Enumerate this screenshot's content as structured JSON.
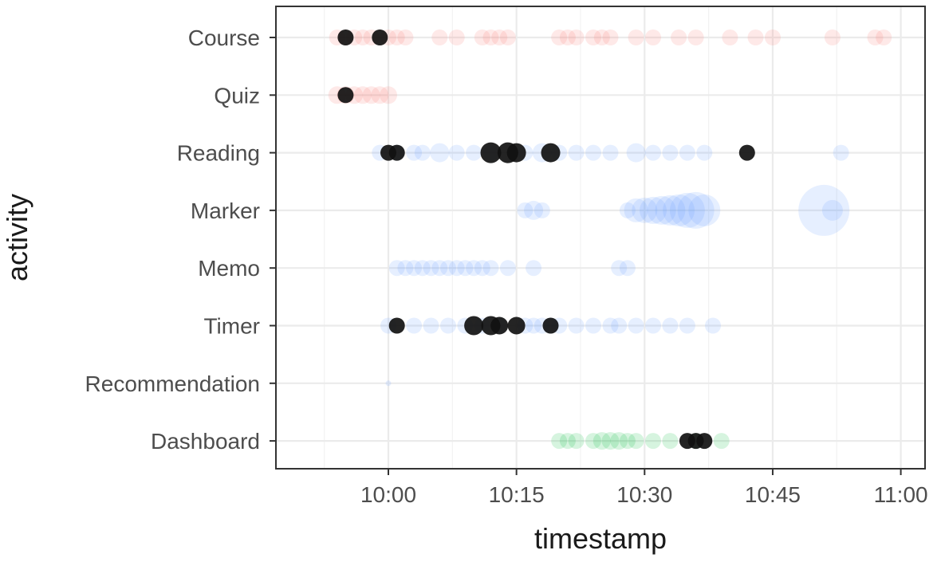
{
  "chart_data": {
    "type": "scatter",
    "title": "",
    "xlabel": "timestamp",
    "ylabel": "activity",
    "x_axis": {
      "type": "time",
      "min": "09:47",
      "max": "11:01",
      "major_ticks": [
        "10:00",
        "10:15",
        "10:30",
        "10:45",
        "11:00"
      ],
      "minor_ticks": [
        "09:52:30",
        "10:07:30",
        "10:22:30",
        "10:37:30",
        "10:52:30"
      ]
    },
    "categories": [
      "Course",
      "Quiz",
      "Reading",
      "Marker",
      "Memo",
      "Timer",
      "Recommendation",
      "Dashboard"
    ],
    "grid": true,
    "legend": "none",
    "colors": {
      "red": "#f8766d",
      "blue": "#619cff",
      "green": "#00ba38",
      "black": "#111111",
      "grid": "#ebebeb",
      "panel_border": "#333333"
    },
    "points": [
      {
        "y": "Course",
        "x": "09:54",
        "c": "red",
        "s": 1
      },
      {
        "y": "Course",
        "x": "09:55",
        "c": "red",
        "s": 1
      },
      {
        "y": "Course",
        "x": "09:56",
        "c": "red",
        "s": 1
      },
      {
        "y": "Course",
        "x": "09:57",
        "c": "red",
        "s": 1
      },
      {
        "y": "Course",
        "x": "09:58",
        "c": "red",
        "s": 1
      },
      {
        "y": "Course",
        "x": "09:59",
        "c": "red",
        "s": 1
      },
      {
        "y": "Course",
        "x": "10:00",
        "c": "red",
        "s": 1
      },
      {
        "y": "Course",
        "x": "10:01",
        "c": "red",
        "s": 1
      },
      {
        "y": "Course",
        "x": "10:02",
        "c": "red",
        "s": 1
      },
      {
        "y": "Course",
        "x": "10:06",
        "c": "red",
        "s": 1
      },
      {
        "y": "Course",
        "x": "10:08",
        "c": "red",
        "s": 1
      },
      {
        "y": "Course",
        "x": "10:11",
        "c": "red",
        "s": 1
      },
      {
        "y": "Course",
        "x": "10:12",
        "c": "red",
        "s": 1
      },
      {
        "y": "Course",
        "x": "10:13",
        "c": "red",
        "s": 1
      },
      {
        "y": "Course",
        "x": "10:14",
        "c": "red",
        "s": 1
      },
      {
        "y": "Course",
        "x": "10:20",
        "c": "red",
        "s": 1
      },
      {
        "y": "Course",
        "x": "10:21",
        "c": "red",
        "s": 1
      },
      {
        "y": "Course",
        "x": "10:22",
        "c": "red",
        "s": 1
      },
      {
        "y": "Course",
        "x": "10:24",
        "c": "red",
        "s": 1
      },
      {
        "y": "Course",
        "x": "10:25",
        "c": "red",
        "s": 1
      },
      {
        "y": "Course",
        "x": "10:26",
        "c": "red",
        "s": 1
      },
      {
        "y": "Course",
        "x": "10:29",
        "c": "red",
        "s": 1
      },
      {
        "y": "Course",
        "x": "10:31",
        "c": "red",
        "s": 1
      },
      {
        "y": "Course",
        "x": "10:34",
        "c": "red",
        "s": 1
      },
      {
        "y": "Course",
        "x": "10:36",
        "c": "red",
        "s": 1
      },
      {
        "y": "Course",
        "x": "10:40",
        "c": "red",
        "s": 1
      },
      {
        "y": "Course",
        "x": "10:43",
        "c": "red",
        "s": 1
      },
      {
        "y": "Course",
        "x": "10:45",
        "c": "red",
        "s": 1
      },
      {
        "y": "Course",
        "x": "10:52",
        "c": "red",
        "s": 1
      },
      {
        "y": "Course",
        "x": "10:57",
        "c": "red",
        "s": 1
      },
      {
        "y": "Course",
        "x": "10:58",
        "c": "red",
        "s": 1
      },
      {
        "y": "Course",
        "x": "09:55",
        "c": "black",
        "s": 1
      },
      {
        "y": "Course",
        "x": "09:59",
        "c": "black",
        "s": 1
      },
      {
        "y": "Quiz",
        "x": "09:54",
        "c": "red",
        "s": 1.1
      },
      {
        "y": "Quiz",
        "x": "09:55",
        "c": "red",
        "s": 1.1
      },
      {
        "y": "Quiz",
        "x": "09:56",
        "c": "red",
        "s": 1.1
      },
      {
        "y": "Quiz",
        "x": "09:57",
        "c": "red",
        "s": 1.1
      },
      {
        "y": "Quiz",
        "x": "09:58",
        "c": "red",
        "s": 1.1
      },
      {
        "y": "Quiz",
        "x": "09:59",
        "c": "red",
        "s": 1.1
      },
      {
        "y": "Quiz",
        "x": "10:00",
        "c": "red",
        "s": 1.1
      },
      {
        "y": "Quiz",
        "x": "09:55",
        "c": "black",
        "s": 1
      },
      {
        "y": "Reading",
        "x": "09:59",
        "c": "blue",
        "s": 1
      },
      {
        "y": "Reading",
        "x": "10:01",
        "c": "blue",
        "s": 1
      },
      {
        "y": "Reading",
        "x": "10:03",
        "c": "blue",
        "s": 1
      },
      {
        "y": "Reading",
        "x": "10:04",
        "c": "blue",
        "s": 1
      },
      {
        "y": "Reading",
        "x": "10:06",
        "c": "blue",
        "s": 1.2
      },
      {
        "y": "Reading",
        "x": "10:08",
        "c": "blue",
        "s": 1
      },
      {
        "y": "Reading",
        "x": "10:10",
        "c": "blue",
        "s": 1
      },
      {
        "y": "Reading",
        "x": "10:12",
        "c": "blue",
        "s": 1
      },
      {
        "y": "Reading",
        "x": "10:16",
        "c": "blue",
        "s": 1
      },
      {
        "y": "Reading",
        "x": "10:18",
        "c": "blue",
        "s": 1.2
      },
      {
        "y": "Reading",
        "x": "10:20",
        "c": "blue",
        "s": 1
      },
      {
        "y": "Reading",
        "x": "10:22",
        "c": "blue",
        "s": 1
      },
      {
        "y": "Reading",
        "x": "10:24",
        "c": "blue",
        "s": 1
      },
      {
        "y": "Reading",
        "x": "10:26",
        "c": "blue",
        "s": 1
      },
      {
        "y": "Reading",
        "x": "10:29",
        "c": "blue",
        "s": 1.2
      },
      {
        "y": "Reading",
        "x": "10:31",
        "c": "blue",
        "s": 1
      },
      {
        "y": "Reading",
        "x": "10:33",
        "c": "blue",
        "s": 1
      },
      {
        "y": "Reading",
        "x": "10:35",
        "c": "blue",
        "s": 1
      },
      {
        "y": "Reading",
        "x": "10:37",
        "c": "blue",
        "s": 1
      },
      {
        "y": "Reading",
        "x": "10:53",
        "c": "blue",
        "s": 1
      },
      {
        "y": "Reading",
        "x": "10:00",
        "c": "black",
        "s": 1
      },
      {
        "y": "Reading",
        "x": "10:01",
        "c": "black",
        "s": 1
      },
      {
        "y": "Reading",
        "x": "10:12",
        "c": "black",
        "s": 1.3
      },
      {
        "y": "Reading",
        "x": "10:14",
        "c": "black",
        "s": 1.3
      },
      {
        "y": "Reading",
        "x": "10:15",
        "c": "black",
        "s": 1.2
      },
      {
        "y": "Reading",
        "x": "10:19",
        "c": "black",
        "s": 1.2
      },
      {
        "y": "Reading",
        "x": "10:42",
        "c": "black",
        "s": 1
      },
      {
        "y": "Marker",
        "x": "10:16",
        "c": "blue",
        "s": 1
      },
      {
        "y": "Marker",
        "x": "10:17",
        "c": "blue",
        "s": 1.2
      },
      {
        "y": "Marker",
        "x": "10:18",
        "c": "blue",
        "s": 1
      },
      {
        "y": "Marker",
        "x": "10:28",
        "c": "blue",
        "s": 1
      },
      {
        "y": "Marker",
        "x": "10:29",
        "c": "blue",
        "s": 1.5
      },
      {
        "y": "Marker",
        "x": "10:30",
        "c": "blue",
        "s": 1.6
      },
      {
        "y": "Marker",
        "x": "10:31",
        "c": "blue",
        "s": 1.7
      },
      {
        "y": "Marker",
        "x": "10:32",
        "c": "blue",
        "s": 1.8
      },
      {
        "y": "Marker",
        "x": "10:33",
        "c": "blue",
        "s": 1.9
      },
      {
        "y": "Marker",
        "x": "10:34",
        "c": "blue",
        "s": 2
      },
      {
        "y": "Marker",
        "x": "10:35",
        "c": "blue",
        "s": 2.2
      },
      {
        "y": "Marker",
        "x": "10:36",
        "c": "blue",
        "s": 2.3
      },
      {
        "y": "Marker",
        "x": "10:37",
        "c": "blue",
        "s": 2
      },
      {
        "y": "Marker",
        "x": "10:51",
        "c": "blue",
        "s": 3.2
      },
      {
        "y": "Marker",
        "x": "10:52",
        "c": "blue",
        "s": 1.3
      },
      {
        "y": "Memo",
        "x": "10:01",
        "c": "blue",
        "s": 1
      },
      {
        "y": "Memo",
        "x": "10:02",
        "c": "blue",
        "s": 1
      },
      {
        "y": "Memo",
        "x": "10:03",
        "c": "blue",
        "s": 1
      },
      {
        "y": "Memo",
        "x": "10:04",
        "c": "blue",
        "s": 1
      },
      {
        "y": "Memo",
        "x": "10:05",
        "c": "blue",
        "s": 1
      },
      {
        "y": "Memo",
        "x": "10:06",
        "c": "blue",
        "s": 1
      },
      {
        "y": "Memo",
        "x": "10:07",
        "c": "blue",
        "s": 1
      },
      {
        "y": "Memo",
        "x": "10:08",
        "c": "blue",
        "s": 1
      },
      {
        "y": "Memo",
        "x": "10:09",
        "c": "blue",
        "s": 1
      },
      {
        "y": "Memo",
        "x": "10:10",
        "c": "blue",
        "s": 1
      },
      {
        "y": "Memo",
        "x": "10:11",
        "c": "blue",
        "s": 1
      },
      {
        "y": "Memo",
        "x": "10:12",
        "c": "blue",
        "s": 1
      },
      {
        "y": "Memo",
        "x": "10:14",
        "c": "blue",
        "s": 1
      },
      {
        "y": "Memo",
        "x": "10:17",
        "c": "blue",
        "s": 1
      },
      {
        "y": "Memo",
        "x": "10:27",
        "c": "blue",
        "s": 1
      },
      {
        "y": "Memo",
        "x": "10:28",
        "c": "blue",
        "s": 1
      },
      {
        "y": "Timer",
        "x": "10:00",
        "c": "blue",
        "s": 1
      },
      {
        "y": "Timer",
        "x": "10:03",
        "c": "blue",
        "s": 1
      },
      {
        "y": "Timer",
        "x": "10:05",
        "c": "blue",
        "s": 1
      },
      {
        "y": "Timer",
        "x": "10:07",
        "c": "blue",
        "s": 1
      },
      {
        "y": "Timer",
        "x": "10:09",
        "c": "blue",
        "s": 1
      },
      {
        "y": "Timer",
        "x": "10:11",
        "c": "blue",
        "s": 1
      },
      {
        "y": "Timer",
        "x": "10:13",
        "c": "blue",
        "s": 1
      },
      {
        "y": "Timer",
        "x": "10:16",
        "c": "blue",
        "s": 1
      },
      {
        "y": "Timer",
        "x": "10:17",
        "c": "blue",
        "s": 1
      },
      {
        "y": "Timer",
        "x": "10:18",
        "c": "blue",
        "s": 1
      },
      {
        "y": "Timer",
        "x": "10:19",
        "c": "blue",
        "s": 1
      },
      {
        "y": "Timer",
        "x": "10:20",
        "c": "blue",
        "s": 1
      },
      {
        "y": "Timer",
        "x": "10:22",
        "c": "blue",
        "s": 1
      },
      {
        "y": "Timer",
        "x": "10:24",
        "c": "blue",
        "s": 1
      },
      {
        "y": "Timer",
        "x": "10:26",
        "c": "blue",
        "s": 1
      },
      {
        "y": "Timer",
        "x": "10:27",
        "c": "blue",
        "s": 1
      },
      {
        "y": "Timer",
        "x": "10:29",
        "c": "blue",
        "s": 1
      },
      {
        "y": "Timer",
        "x": "10:31",
        "c": "blue",
        "s": 1
      },
      {
        "y": "Timer",
        "x": "10:33",
        "c": "blue",
        "s": 1
      },
      {
        "y": "Timer",
        "x": "10:35",
        "c": "blue",
        "s": 1
      },
      {
        "y": "Timer",
        "x": "10:38",
        "c": "blue",
        "s": 1
      },
      {
        "y": "Timer",
        "x": "10:01",
        "c": "black",
        "s": 1
      },
      {
        "y": "Timer",
        "x": "10:10",
        "c": "black",
        "s": 1.2
      },
      {
        "y": "Timer",
        "x": "10:12",
        "c": "black",
        "s": 1.2
      },
      {
        "y": "Timer",
        "x": "10:13",
        "c": "black",
        "s": 1.1
      },
      {
        "y": "Timer",
        "x": "10:15",
        "c": "black",
        "s": 1.1
      },
      {
        "y": "Timer",
        "x": "10:19",
        "c": "black",
        "s": 1
      },
      {
        "y": "Recommendation",
        "x": "10:00",
        "c": "blue",
        "s": 0.35
      },
      {
        "y": "Dashboard",
        "x": "10:20",
        "c": "green",
        "s": 1
      },
      {
        "y": "Dashboard",
        "x": "10:21",
        "c": "green",
        "s": 1
      },
      {
        "y": "Dashboard",
        "x": "10:22",
        "c": "green",
        "s": 1
      },
      {
        "y": "Dashboard",
        "x": "10:24",
        "c": "green",
        "s": 1
      },
      {
        "y": "Dashboard",
        "x": "10:25",
        "c": "green",
        "s": 1.1
      },
      {
        "y": "Dashboard",
        "x": "10:26",
        "c": "green",
        "s": 1.1
      },
      {
        "y": "Dashboard",
        "x": "10:27",
        "c": "green",
        "s": 1.1
      },
      {
        "y": "Dashboard",
        "x": "10:28",
        "c": "green",
        "s": 1
      },
      {
        "y": "Dashboard",
        "x": "10:29",
        "c": "green",
        "s": 1
      },
      {
        "y": "Dashboard",
        "x": "10:31",
        "c": "green",
        "s": 1
      },
      {
        "y": "Dashboard",
        "x": "10:33",
        "c": "green",
        "s": 1
      },
      {
        "y": "Dashboard",
        "x": "10:36",
        "c": "green",
        "s": 1
      },
      {
        "y": "Dashboard",
        "x": "10:39",
        "c": "green",
        "s": 1
      },
      {
        "y": "Dashboard",
        "x": "10:35",
        "c": "black",
        "s": 1
      },
      {
        "y": "Dashboard",
        "x": "10:36",
        "c": "black",
        "s": 1
      },
      {
        "y": "Dashboard",
        "x": "10:37",
        "c": "black",
        "s": 1
      }
    ]
  }
}
